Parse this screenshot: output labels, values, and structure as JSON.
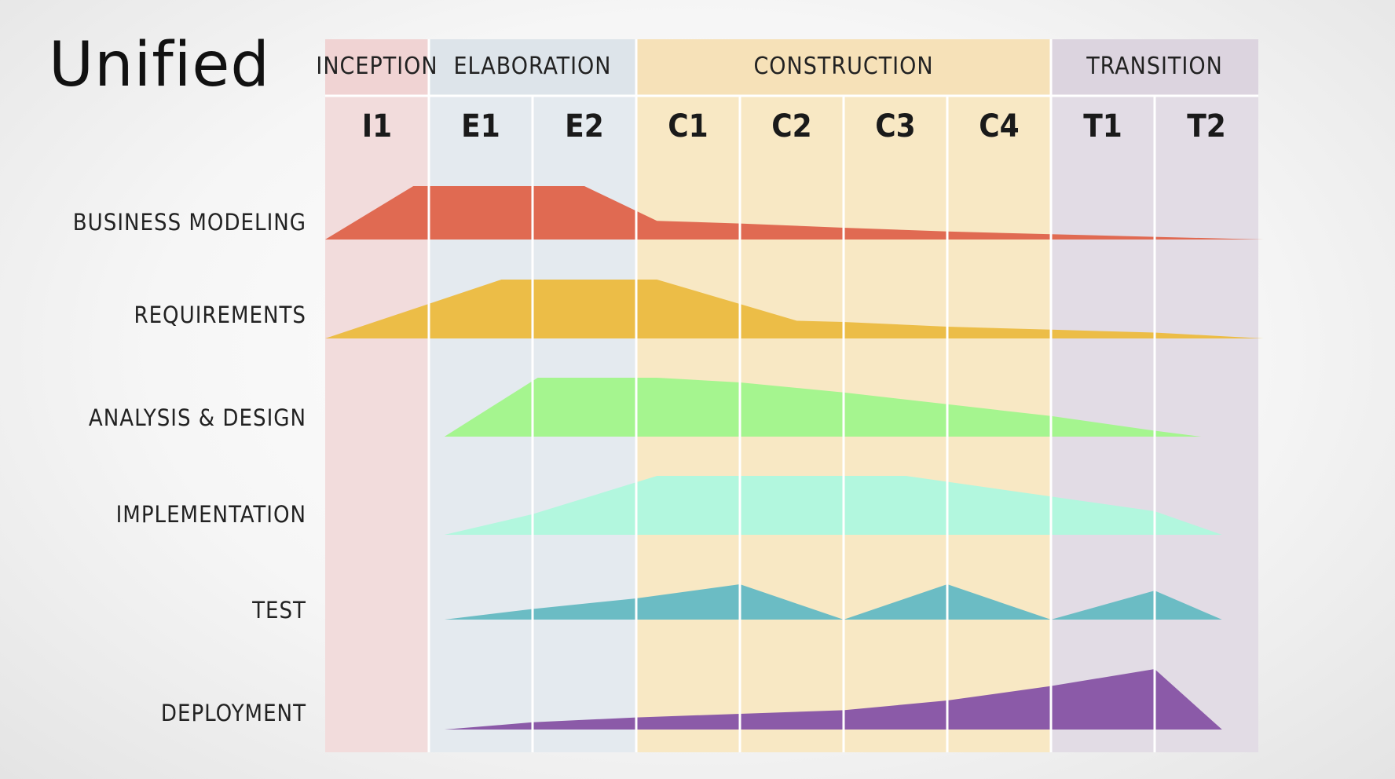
{
  "title": "Unified",
  "colors": {
    "phases": [
      "#f2dcdc",
      "#e4eaef",
      "#f8e8c4",
      "#e2dce5"
    ],
    "headerStrip": [
      "#f0d3d3",
      "#dde4ea",
      "#f6e1b8",
      "#dcd4df"
    ],
    "disciplines": [
      "#e06a52",
      "#ecbd47",
      "#a5f58f",
      "#b2f7de",
      "#6bbcc4",
      "#8b5aa8"
    ]
  },
  "phases": [
    {
      "name": "INCEPTION",
      "iterations": 1
    },
    {
      "name": "ELABORATION",
      "iterations": 2
    },
    {
      "name": "CONSTRUCTION",
      "iterations": 4
    },
    {
      "name": "TRANSITION",
      "iterations": 2
    }
  ],
  "iterations": [
    "I1",
    "E1",
    "E2",
    "C1",
    "C2",
    "C3",
    "C4",
    "T1",
    "T2"
  ],
  "chart_data": {
    "type": "area",
    "categories": [
      "I1",
      "E1",
      "E2",
      "C1",
      "C2",
      "C3",
      "C4",
      "T1",
      "T2"
    ],
    "series": [
      {
        "name": "BUSINESS MODELING",
        "x": [
          0,
          0.85,
          2.5,
          3.2,
          4,
          5,
          6,
          7,
          8,
          9.05
        ],
        "values": [
          0,
          1,
          1,
          0.35,
          0.3,
          0.22,
          0.15,
          0.1,
          0.05,
          0
        ]
      },
      {
        "name": "REQUIREMENTS",
        "x": [
          0,
          1.7,
          3.2,
          4.55,
          5,
          6,
          7,
          8,
          9.05
        ],
        "values": [
          0,
          1,
          1,
          0.3,
          0.28,
          0.2,
          0.15,
          0.1,
          0
        ]
      },
      {
        "name": "ANALYSIS & DESIGN",
        "x": [
          1.15,
          2.05,
          3.2,
          4,
          5,
          6,
          7,
          8,
          8.45
        ],
        "values": [
          0,
          1,
          1,
          0.92,
          0.75,
          0.55,
          0.35,
          0.1,
          0
        ]
      },
      {
        "name": "IMPLEMENTATION",
        "x": [
          1.15,
          2,
          3.2,
          4,
          5,
          5.6,
          6,
          7,
          8,
          8.65
        ],
        "values": [
          0,
          0.35,
          1,
          1,
          1,
          1,
          0.9,
          0.65,
          0.4,
          0
        ]
      },
      {
        "name": "TEST",
        "x": [
          1.15,
          2,
          3,
          4,
          5,
          6,
          7,
          8,
          8.65
        ],
        "values": [
          0,
          0.3,
          0.6,
          1,
          0,
          1,
          0,
          0.82,
          0
        ]
      },
      {
        "name": "DEPLOYMENT",
        "x": [
          1.15,
          2,
          3,
          4,
          5,
          6,
          7,
          8,
          8.65
        ],
        "values": [
          0,
          0.12,
          0.2,
          0.26,
          0.32,
          0.48,
          0.72,
          1,
          0
        ]
      }
    ]
  }
}
